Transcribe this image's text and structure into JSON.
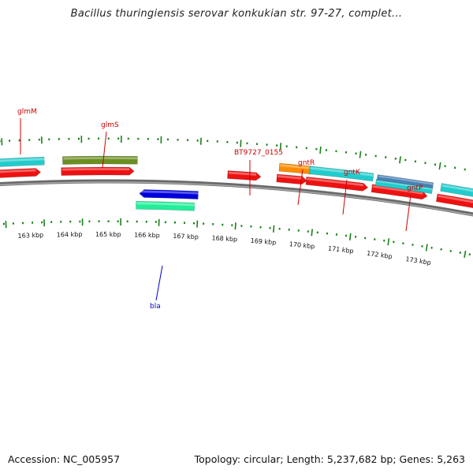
{
  "title": "Bacillus thuringiensis serovar konkukian str. 97-27, complet...",
  "footer": {
    "accession": "Accession: NC_005957",
    "summary": "Topology: circular; Length: 5,237,682 bp; Genes: 5,263"
  },
  "colors": {
    "backbone": "#808080",
    "tick": "#1a7f1a",
    "forward_label": "#cc0000",
    "reverse_label": "#0000cc"
  },
  "scale_labels": [
    "163 kbp",
    "164 kbp",
    "165 kbp",
    "166 kbp",
    "167 kbp",
    "168 kbp",
    "169 kbp",
    "170 kbp",
    "171 kbp",
    "172 kbp",
    "173 kbp"
  ],
  "gene_labels": [
    {
      "text": "glmM",
      "strand": "forward"
    },
    {
      "text": "glmS",
      "strand": "forward"
    },
    {
      "text": "BT9727_0155",
      "strand": "forward"
    },
    {
      "text": "gntR",
      "strand": "forward"
    },
    {
      "text": "gntK",
      "strand": "forward"
    },
    {
      "text": "gntP",
      "strand": "forward"
    },
    {
      "text": "bla",
      "strand": "reverse"
    }
  ]
}
